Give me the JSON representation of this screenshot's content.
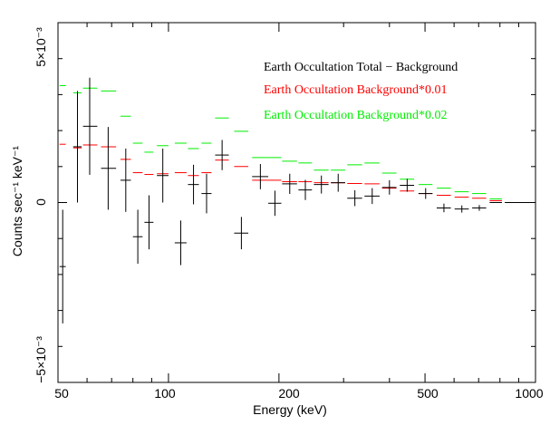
{
  "colors": {
    "total": "#000000",
    "bkg01": "#ff0000",
    "bkg02": "#00ee00",
    "axis": "#000000"
  },
  "chart_data": {
    "type": "scatter",
    "title": "",
    "xlabel": "Energy (keV)",
    "ylabel": "Counts sec⁻¹ keV⁻¹",
    "x_scale": "log",
    "xlim": [
      50,
      1000
    ],
    "ylim": [
      -0.005,
      0.005
    ],
    "x_ticks": [
      100,
      200,
      500,
      1000
    ],
    "x_tick_labels": [
      "100",
      "200",
      "500",
      "1000"
    ],
    "x_min_label": "50",
    "y_ticks": [
      -0.005,
      0,
      0.005
    ],
    "y_tick_labels": [
      "−5×10⁻³",
      "0",
      "5×10⁻³"
    ],
    "grid": false,
    "legend_position": "top-right",
    "series": [
      {
        "name": "Earth Occultation Total − Background",
        "color": "#000000",
        "points": [
          {
            "x": 51.5,
            "xlo": 50.5,
            "xhi": 52.5,
            "y": -0.00178,
            "err": 0.00158
          },
          {
            "x": 56.5,
            "xlo": 55.0,
            "xhi": 58.0,
            "y": 0.00155,
            "err": 0.00155
          },
          {
            "x": 61.0,
            "xlo": 58.5,
            "xhi": 64.0,
            "y": 0.00212,
            "err": 0.00135
          },
          {
            "x": 68.5,
            "xlo": 65.5,
            "xhi": 72.0,
            "y": 0.00095,
            "err": 0.00115
          },
          {
            "x": 76.5,
            "xlo": 74.0,
            "xhi": 79.0,
            "y": 0.00062,
            "err": 0.00088
          },
          {
            "x": 82.5,
            "xlo": 80.0,
            "xhi": 85.0,
            "y": -0.00095,
            "err": 0.00075
          },
          {
            "x": 88.5,
            "xlo": 86.0,
            "xhi": 91.0,
            "y": -0.00055,
            "err": 0.00075
          },
          {
            "x": 96.5,
            "xlo": 93.0,
            "xhi": 100.0,
            "y": 0.00075,
            "err": 0.00075
          },
          {
            "x": 108.0,
            "xlo": 104.0,
            "xhi": 112.0,
            "y": -0.00112,
            "err": 0.00062
          },
          {
            "x": 117.0,
            "xlo": 113.0,
            "xhi": 121.0,
            "y": 0.0005,
            "err": 0.00055
          },
          {
            "x": 127.0,
            "xlo": 123.0,
            "xhi": 131.0,
            "y": 0.00025,
            "err": 0.00055
          },
          {
            "x": 140.0,
            "xlo": 134.0,
            "xhi": 146.0,
            "y": 0.00132,
            "err": 0.00042
          },
          {
            "x": 158.0,
            "xlo": 151.0,
            "xhi": 165.0,
            "y": -0.00085,
            "err": 0.00045
          },
          {
            "x": 178.0,
            "xlo": 169.0,
            "xhi": 187.0,
            "y": 0.00072,
            "err": 0.00035
          },
          {
            "x": 195.0,
            "xlo": 187.0,
            "xhi": 203.0,
            "y": -2e-05,
            "err": 0.00035
          },
          {
            "x": 214.0,
            "xlo": 204.0,
            "xhi": 224.0,
            "y": 0.00052,
            "err": 0.00028
          },
          {
            "x": 236.0,
            "xlo": 226.0,
            "xhi": 246.0,
            "y": 0.00035,
            "err": 0.00028
          },
          {
            "x": 261.0,
            "xlo": 249.0,
            "xhi": 273.0,
            "y": 0.0005,
            "err": 0.00025
          },
          {
            "x": 290.0,
            "xlo": 277.0,
            "xhi": 303.0,
            "y": 0.00055,
            "err": 0.00025
          },
          {
            "x": 322.0,
            "xlo": 307.0,
            "xhi": 337.0,
            "y": 0.00012,
            "err": 0.00022
          },
          {
            "x": 359.0,
            "xlo": 342.0,
            "xhi": 376.0,
            "y": 0.00018,
            "err": 0.00022
          },
          {
            "x": 400.0,
            "xlo": 382.0,
            "xhi": 418.0,
            "y": 0.00042,
            "err": 0.0002
          },
          {
            "x": 447.0,
            "xlo": 427.0,
            "xhi": 467.0,
            "y": 0.00048,
            "err": 0.00018
          },
          {
            "x": 502.0,
            "xlo": 480.0,
            "xhi": 524.0,
            "y": 0.00025,
            "err": 0.00015
          },
          {
            "x": 563.0,
            "xlo": 538.0,
            "xhi": 588.0,
            "y": -0.00015,
            "err": 0.00012
          },
          {
            "x": 630.0,
            "xlo": 602.0,
            "xhi": 658.0,
            "y": -0.00018,
            "err": 0.0001
          },
          {
            "x": 703.0,
            "xlo": 672.0,
            "xhi": 734.0,
            "y": -0.00015,
            "err": 8e-05
          },
          {
            "x": 780.0,
            "xlo": 750.0,
            "xhi": 810.0,
            "y": 0.0,
            "err": 0.0
          },
          {
            "x": 880.0,
            "xlo": 825.0,
            "xhi": 1000.0,
            "y": 0.0,
            "err": 0.0
          }
        ]
      },
      {
        "name": "Earth Occultation Background*0.01",
        "color": "#ff0000",
        "points": [
          {
            "x": 51.5,
            "xlo": 50.5,
            "xhi": 52.5,
            "y": 0.00162
          },
          {
            "x": 56.5,
            "xlo": 55.0,
            "xhi": 58.0,
            "y": 0.00152
          },
          {
            "x": 61.0,
            "xlo": 58.5,
            "xhi": 64.0,
            "y": 0.0016
          },
          {
            "x": 68.5,
            "xlo": 65.5,
            "xhi": 72.0,
            "y": 0.00155
          },
          {
            "x": 76.5,
            "xlo": 74.0,
            "xhi": 79.0,
            "y": 0.0012
          },
          {
            "x": 82.5,
            "xlo": 80.0,
            "xhi": 85.0,
            "y": 0.00083
          },
          {
            "x": 88.5,
            "xlo": 86.0,
            "xhi": 91.0,
            "y": 0.00078
          },
          {
            "x": 96.5,
            "xlo": 93.0,
            "xhi": 100.0,
            "y": 0.0008
          },
          {
            "x": 108.0,
            "xlo": 104.0,
            "xhi": 112.0,
            "y": 0.00083
          },
          {
            "x": 117.0,
            "xlo": 113.0,
            "xhi": 121.0,
            "y": 0.00075
          },
          {
            "x": 127.0,
            "xlo": 123.0,
            "xhi": 131.0,
            "y": 0.00083
          },
          {
            "x": 140.0,
            "xlo": 134.0,
            "xhi": 146.0,
            "y": 0.00118
          },
          {
            "x": 158.0,
            "xlo": 151.0,
            "xhi": 165.0,
            "y": 0.001
          },
          {
            "x": 178.0,
            "xlo": 169.0,
            "xhi": 187.0,
            "y": 0.00062
          },
          {
            "x": 195.0,
            "xlo": 187.0,
            "xhi": 203.0,
            "y": 0.00062
          },
          {
            "x": 214.0,
            "xlo": 204.0,
            "xhi": 224.0,
            "y": 0.00058
          },
          {
            "x": 236.0,
            "xlo": 226.0,
            "xhi": 246.0,
            "y": 0.00058
          },
          {
            "x": 261.0,
            "xlo": 249.0,
            "xhi": 273.0,
            "y": 0.00055
          },
          {
            "x": 290.0,
            "xlo": 277.0,
            "xhi": 303.0,
            "y": 0.00055
          },
          {
            "x": 322.0,
            "xlo": 307.0,
            "xhi": 337.0,
            "y": 0.00053
          },
          {
            "x": 359.0,
            "xlo": 342.0,
            "xhi": 376.0,
            "y": 0.00052
          },
          {
            "x": 400.0,
            "xlo": 382.0,
            "xhi": 418.0,
            "y": 0.0004
          },
          {
            "x": 447.0,
            "xlo": 427.0,
            "xhi": 467.0,
            "y": 0.00032
          },
          {
            "x": 502.0,
            "xlo": 480.0,
            "xhi": 524.0,
            "y": 0.00025
          },
          {
            "x": 563.0,
            "xlo": 538.0,
            "xhi": 588.0,
            "y": 0.0002
          },
          {
            "x": 630.0,
            "xlo": 602.0,
            "xhi": 658.0,
            "y": 0.00015
          },
          {
            "x": 703.0,
            "xlo": 672.0,
            "xhi": 734.0,
            "y": 0.00012
          },
          {
            "x": 780.0,
            "xlo": 750.0,
            "xhi": 810.0,
            "y": 5e-05
          },
          {
            "x": 880.0,
            "xlo": 825.0,
            "xhi": 1000.0,
            "y": 0.0
          }
        ]
      },
      {
        "name": "Earth Occultation Background*0.02",
        "color": "#00ee00",
        "points": [
          {
            "x": 51.5,
            "xlo": 50.5,
            "xhi": 52.5,
            "y": 0.00325
          },
          {
            "x": 56.5,
            "xlo": 55.0,
            "xhi": 58.0,
            "y": 0.00305
          },
          {
            "x": 61.0,
            "xlo": 58.5,
            "xhi": 64.0,
            "y": 0.00318
          },
          {
            "x": 68.5,
            "xlo": 65.5,
            "xhi": 72.0,
            "y": 0.0031
          },
          {
            "x": 76.5,
            "xlo": 74.0,
            "xhi": 79.0,
            "y": 0.0024
          },
          {
            "x": 82.5,
            "xlo": 80.0,
            "xhi": 85.0,
            "y": 0.00165
          },
          {
            "x": 88.5,
            "xlo": 86.0,
            "xhi": 91.0,
            "y": 0.0014
          },
          {
            "x": 96.5,
            "xlo": 93.0,
            "xhi": 100.0,
            "y": 0.00158
          },
          {
            "x": 108.0,
            "xlo": 104.0,
            "xhi": 112.0,
            "y": 0.00165
          },
          {
            "x": 117.0,
            "xlo": 113.0,
            "xhi": 121.0,
            "y": 0.0015
          },
          {
            "x": 127.0,
            "xlo": 123.0,
            "xhi": 131.0,
            "y": 0.00165
          },
          {
            "x": 140.0,
            "xlo": 134.0,
            "xhi": 146.0,
            "y": 0.00235
          },
          {
            "x": 158.0,
            "xlo": 151.0,
            "xhi": 165.0,
            "y": 0.00198
          },
          {
            "x": 178.0,
            "xlo": 169.0,
            "xhi": 187.0,
            "y": 0.00125
          },
          {
            "x": 195.0,
            "xlo": 187.0,
            "xhi": 203.0,
            "y": 0.00125
          },
          {
            "x": 214.0,
            "xlo": 204.0,
            "xhi": 224.0,
            "y": 0.00115
          },
          {
            "x": 236.0,
            "xlo": 226.0,
            "xhi": 246.0,
            "y": 0.0011
          },
          {
            "x": 261.0,
            "xlo": 249.0,
            "xhi": 273.0,
            "y": 0.0009
          },
          {
            "x": 290.0,
            "xlo": 277.0,
            "xhi": 303.0,
            "y": 0.0009
          },
          {
            "x": 322.0,
            "xlo": 307.0,
            "xhi": 337.0,
            "y": 0.00105
          },
          {
            "x": 359.0,
            "xlo": 342.0,
            "xhi": 376.0,
            "y": 0.0011
          },
          {
            "x": 400.0,
            "xlo": 382.0,
            "xhi": 418.0,
            "y": 0.00082
          },
          {
            "x": 447.0,
            "xlo": 427.0,
            "xhi": 467.0,
            "y": 0.00065
          },
          {
            "x": 502.0,
            "xlo": 480.0,
            "xhi": 524.0,
            "y": 0.0005
          },
          {
            "x": 563.0,
            "xlo": 538.0,
            "xhi": 588.0,
            "y": 0.0004
          },
          {
            "x": 630.0,
            "xlo": 602.0,
            "xhi": 658.0,
            "y": 0.0003
          },
          {
            "x": 703.0,
            "xlo": 672.0,
            "xhi": 734.0,
            "y": 0.00025
          },
          {
            "x": 780.0,
            "xlo": 750.0,
            "xhi": 810.0,
            "y": 0.0001
          },
          {
            "x": 880.0,
            "xlo": 825.0,
            "xhi": 1000.0,
            "y": 0.0
          }
        ]
      }
    ]
  }
}
